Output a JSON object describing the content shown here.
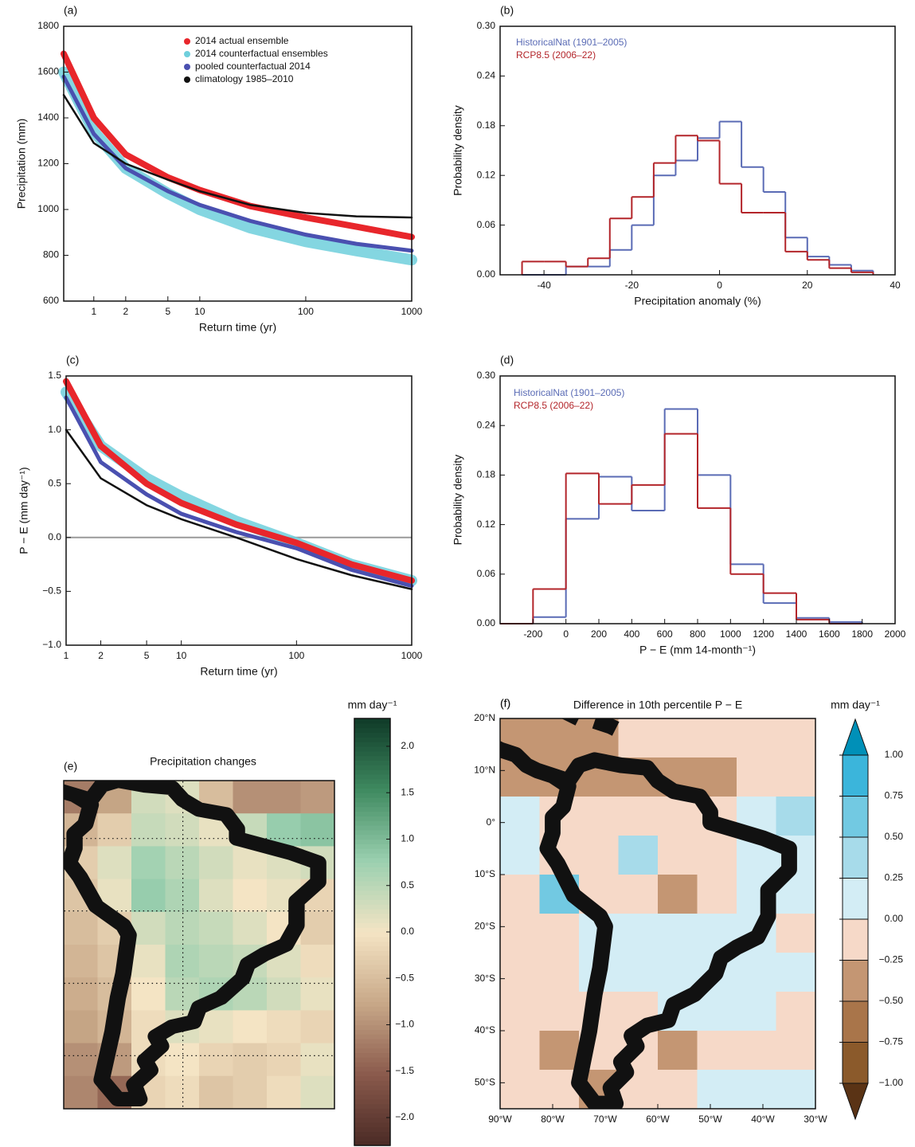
{
  "chart_data": [
    {
      "type": "line",
      "panel_label": "(a)",
      "xlabel": "Return time (yr)",
      "ylabel": "Precipitation (mm)",
      "xscale": "log",
      "xlim": [
        0.52,
        1000
      ],
      "xticks": [
        1,
        2,
        5,
        10,
        100,
        1000
      ],
      "ylim": [
        600,
        1800
      ],
      "yticks": [
        600,
        800,
        1000,
        1200,
        1400,
        1600,
        1800
      ],
      "legend": "upper right",
      "x": [
        0.52,
        1,
        2,
        5,
        10,
        30,
        100,
        300,
        1000
      ],
      "series": [
        {
          "name": "2014 counterfactual ensembles",
          "color": "#6fcfdc",
          "values": [
            1600,
            1340,
            1180,
            1070,
            1000,
            920,
            860,
            820,
            780
          ]
        },
        {
          "name": "2014 actual ensemble",
          "color": "#e8262b",
          "values": [
            1680,
            1400,
            1240,
            1140,
            1085,
            1015,
            965,
            925,
            880
          ]
        },
        {
          "name": "pooled counterfactual 2014",
          "color": "#4a50b0",
          "values": [
            1580,
            1330,
            1180,
            1080,
            1020,
            950,
            890,
            850,
            820
          ]
        },
        {
          "name": "climatology 1985–2010",
          "color": "#111111",
          "values": [
            1500,
            1290,
            1200,
            1130,
            1080,
            1020,
            985,
            970,
            965
          ]
        }
      ]
    },
    {
      "type": "histogram",
      "panel_label": "(b)",
      "xlabel": "Precipitation anomaly (%)",
      "ylabel": "Probability density",
      "xlim": [
        -50,
        40
      ],
      "xticks": [
        -40,
        -20,
        0,
        20,
        40
      ],
      "ylim": [
        0,
        0.3
      ],
      "yticks": [
        {
          "value": 0,
          "label": "0.00"
        },
        {
          "value": 0.06,
          "label": "0.06"
        },
        {
          "value": 0.12,
          "label": "0.12"
        },
        {
          "value": 0.18,
          "label": "0.18"
        },
        {
          "value": 0.24,
          "label": "0.24"
        },
        {
          "value": 0.3,
          "label": "0.30"
        }
      ],
      "legend": "upper left",
      "bins": [
        -45,
        -40,
        -35,
        -30,
        -25,
        -20,
        -15,
        -10,
        -5,
        0,
        5,
        10,
        15,
        20,
        25,
        30,
        35
      ],
      "series": [
        {
          "name": "HistoricalNat (1901–2005)",
          "color": "#5a6bb5",
          "values": [
            0,
            0,
            0.01,
            0.01,
            0.03,
            0.06,
            0.12,
            0.138,
            0.165,
            0.185,
            0.13,
            0.1,
            0.045,
            0.022,
            0.012,
            0.005
          ]
        },
        {
          "name": "RCP8.5 (2006–22)",
          "color": "#b3252a",
          "values": [
            0.016,
            0.016,
            0.01,
            0.02,
            0.068,
            0.094,
            0.135,
            0.168,
            0.162,
            0.11,
            0.075,
            0.075,
            0.028,
            0.018,
            0.008,
            0.003
          ]
        }
      ]
    },
    {
      "type": "line",
      "panel_label": "(c)",
      "xlabel": "Return time (yr)",
      "ylabel": "P − E (mm day⁻¹)",
      "xscale": "log",
      "xlim": [
        1,
        1000
      ],
      "xticks": [
        1,
        2,
        5,
        10,
        100,
        1000
      ],
      "ylim": [
        -1,
        1.5
      ],
      "yticks": [
        {
          "value": -1,
          "label": "−1.0"
        },
        {
          "value": -0.5,
          "label": "−0.5"
        },
        {
          "value": 0,
          "label": "0.0"
        },
        {
          "value": 0.5,
          "label": "0.5"
        },
        {
          "value": 1,
          "label": "1.0"
        },
        {
          "value": 1.5,
          "label": "1.5"
        }
      ],
      "hline": 0,
      "x": [
        1,
        2,
        5,
        10,
        30,
        100,
        300,
        1000
      ],
      "series": [
        {
          "color": "#6fcfdc",
          "values": [
            1.35,
            0.85,
            0.55,
            0.38,
            0.15,
            -0.05,
            -0.25,
            -0.4
          ]
        },
        {
          "color": "#e8262b",
          "values": [
            1.45,
            0.85,
            0.5,
            0.32,
            0.12,
            -0.05,
            -0.25,
            -0.4
          ]
        },
        {
          "color": "#4a50b0",
          "values": [
            1.3,
            0.7,
            0.4,
            0.22,
            0.05,
            -0.1,
            -0.3,
            -0.45
          ]
        },
        {
          "color": "#111111",
          "values": [
            1.0,
            0.55,
            0.3,
            0.17,
            0.0,
            -0.2,
            -0.35,
            -0.48
          ]
        }
      ]
    },
    {
      "type": "histogram",
      "panel_label": "(d)",
      "xlabel": "P − E (mm 14-month⁻¹)",
      "ylabel": "Probability density",
      "xlim": [
        -400,
        2000
      ],
      "xticks": [
        -200,
        0,
        200,
        400,
        600,
        800,
        1000,
        1200,
        1400,
        1600,
        1800,
        2000
      ],
      "ylim": [
        0,
        0.3
      ],
      "yticks": [
        {
          "value": 0,
          "label": "0.00"
        },
        {
          "value": 0.06,
          "label": "0.06"
        },
        {
          "value": 0.12,
          "label": "0.12"
        },
        {
          "value": 0.18,
          "label": "0.18"
        },
        {
          "value": 0.24,
          "label": "0.24"
        },
        {
          "value": 0.3,
          "label": "0.30"
        }
      ],
      "legend": "upper left",
      "bins": [
        -400,
        -200,
        0,
        200,
        400,
        600,
        800,
        1000,
        1200,
        1400,
        1600,
        1800
      ],
      "series": [
        {
          "name": "HistoricalNat (1901–2005)",
          "color": "#5a6bb5",
          "values": [
            0,
            0.008,
            0.127,
            0.178,
            0.137,
            0.26,
            0.18,
            0.072,
            0.025,
            0.007,
            0.002
          ]
        },
        {
          "name": "RCP8.5 (2006–22)",
          "color": "#b3252a",
          "values": [
            0,
            0.042,
            0.182,
            0.145,
            0.168,
            0.23,
            0.14,
            0.06,
            0.037,
            0.005,
            0
          ]
        }
      ]
    },
    {
      "type": "heatmap",
      "panel_label": "(e)",
      "title": "Precipitation changes",
      "colorbar_label": "mm day⁻¹",
      "colorbar": {
        "lim": [
          -2.3,
          2.3
        ],
        "colors": [
          "#4a2a25",
          "#8a5a4c",
          "#c8a888",
          "#f4e4c4",
          "#9bd0b0",
          "#3f8a60",
          "#0f3a28"
        ],
        "ticks": [
          {
            "value": -2,
            "label": "−2.0"
          },
          {
            "value": -1.5,
            "label": "−1.5"
          },
          {
            "value": -1,
            "label": "−1.0"
          },
          {
            "value": -0.5,
            "label": "−0.5"
          },
          {
            "value": 0,
            "label": "0.0"
          },
          {
            "value": 0.5,
            "label": "0.5"
          },
          {
            "value": 1,
            "label": "1.0"
          },
          {
            "value": 1.5,
            "label": "1.5"
          },
          {
            "value": 2,
            "label": "2.0"
          }
        ]
      },
      "values": [
        [
          -1.2,
          -0.8,
          0.3,
          0.2,
          -0.5,
          -1.0,
          -1.0,
          -0.9
        ],
        [
          -0.6,
          -0.3,
          0.4,
          0.3,
          0.1,
          0.4,
          0.8,
          0.9
        ],
        [
          -0.3,
          0.2,
          0.7,
          0.5,
          0.3,
          0.1,
          0.2,
          0.3
        ],
        [
          -0.4,
          0.1,
          0.8,
          0.6,
          0.2,
          0,
          0.1,
          -0.2
        ],
        [
          -0.5,
          -0.3,
          0.3,
          0.5,
          0.4,
          0.2,
          0,
          -0.3
        ],
        [
          -0.6,
          -0.4,
          0.1,
          0.6,
          0.5,
          0.4,
          0.2,
          -0.1
        ],
        [
          -0.7,
          -0.5,
          0,
          0.5,
          0.6,
          0.5,
          0.3,
          0.1
        ],
        [
          -0.8,
          -0.6,
          -0.1,
          0.2,
          0.1,
          0,
          -0.1,
          -0.2
        ],
        [
          -1.0,
          -0.9,
          -0.1,
          0,
          -0.2,
          -0.3,
          -0.2,
          0.1
        ],
        [
          -1.1,
          -1.4,
          -0.2,
          -0.1,
          -0.4,
          -0.3,
          -0.1,
          0.2
        ]
      ]
    },
    {
      "type": "heatmap",
      "panel_label": "(f)",
      "title": "Difference in 10th percentile P − E",
      "colorbar_label": "mm day⁻¹",
      "xlim": [
        -90,
        -30
      ],
      "ylim": [
        -55,
        20
      ],
      "xticks": [
        {
          "value": -90,
          "label": "90°W"
        },
        {
          "value": -80,
          "label": "80°W"
        },
        {
          "value": -70,
          "label": "70°W"
        },
        {
          "value": -60,
          "label": "60°W"
        },
        {
          "value": -50,
          "label": "50°W"
        },
        {
          "value": -40,
          "label": "40°W"
        },
        {
          "value": -30,
          "label": "30°W"
        }
      ],
      "yticks": [
        {
          "value": 20,
          "label": "20°N"
        },
        {
          "value": 10,
          "label": "10°N"
        },
        {
          "value": 0,
          "label": "0°"
        },
        {
          "value": -10,
          "label": "10°S"
        },
        {
          "value": -20,
          "label": "20°S"
        },
        {
          "value": -30,
          "label": "30°S"
        },
        {
          "value": -40,
          "label": "40°S"
        },
        {
          "value": -50,
          "label": "50°S"
        }
      ],
      "colorbar": {
        "extend": "both",
        "colors": [
          "#5a3315",
          "#8b5a2b",
          "#a9754a",
          "#c49673",
          "#f6d9c8",
          "#d3edf5",
          "#a7dbea",
          "#72c9e2",
          "#3bb5db",
          "#0090b8"
        ],
        "ticks": [
          {
            "value": -1,
            "label": "−1.00"
          },
          {
            "value": -0.75,
            "label": "−0.75"
          },
          {
            "value": -0.5,
            "label": "−0.50"
          },
          {
            "value": -0.25,
            "label": "−0.25"
          },
          {
            "value": 0,
            "label": "0.00"
          },
          {
            "value": 0.25,
            "label": "0.25"
          },
          {
            "value": 0.5,
            "label": "0.50"
          },
          {
            "value": 0.75,
            "label": "0.75"
          },
          {
            "value": 1,
            "label": "1.00"
          }
        ]
      },
      "values": [
        [
          -0.3,
          -0.4,
          -0.4,
          -0.1,
          -0.1,
          -0.1,
          -0.1,
          -0.1
        ],
        [
          -0.3,
          -0.3,
          -0.3,
          -0.3,
          -0.3,
          -0.3,
          -0.2,
          -0.1
        ],
        [
          0.1,
          -0.1,
          -0.1,
          -0.1,
          -0.1,
          -0.2,
          0.1,
          0.3
        ],
        [
          0.1,
          -0.1,
          -0.1,
          0.4,
          -0.1,
          -0.1,
          0.1,
          0.2
        ],
        [
          -0.1,
          0.6,
          -0.1,
          -0.1,
          -0.3,
          -0.1,
          0.1,
          0.1
        ],
        [
          -0.1,
          -0.1,
          0.2,
          0.1,
          0.1,
          0.1,
          0.1,
          -0.1
        ],
        [
          -0.1,
          -0.1,
          0.1,
          0.1,
          0.1,
          0.1,
          0.1,
          0.1
        ],
        [
          -0.1,
          -0.1,
          -0.1,
          -0.1,
          0.1,
          0.1,
          0.1,
          -0.1
        ],
        [
          -0.1,
          -0.3,
          -0.1,
          -0.1,
          -0.3,
          -0.1,
          -0.1,
          -0.1
        ],
        [
          -0.1,
          -0.1,
          -0.3,
          -0.1,
          -0.1,
          0.1,
          0.1,
          0.1
        ]
      ]
    }
  ]
}
